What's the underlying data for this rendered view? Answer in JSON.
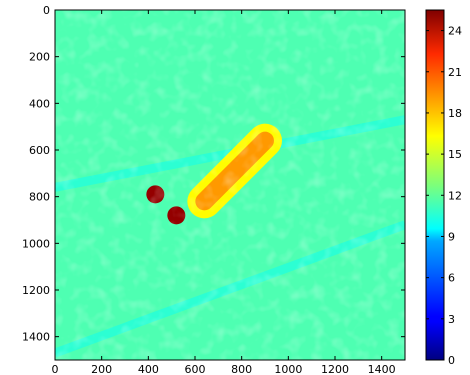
{
  "chart_data": {
    "type": "heatmap",
    "title": "",
    "xlabel": "",
    "ylabel": "",
    "xlim": [
      0,
      1500
    ],
    "ylim": [
      1500,
      0
    ],
    "y_axis_inverted": true,
    "grid": false,
    "x_ticks": [
      "0",
      "200",
      "400",
      "600",
      "800",
      "1000",
      "1200",
      "1400"
    ],
    "y_ticks": [
      "0",
      "200",
      "400",
      "600",
      "800",
      "1000",
      "1200",
      "1400"
    ],
    "colormap": "jet",
    "colorbar": {
      "range": [
        0,
        25.5
      ],
      "ticks": [
        "0",
        "3",
        "6",
        "9",
        "12",
        "15",
        "18",
        "21",
        "24"
      ],
      "placement": "right"
    },
    "background_level": 11.5,
    "features": [
      {
        "kind": "elongated-ridge",
        "from": [
          640,
          820
        ],
        "to": [
          900,
          560
        ],
        "peak_value": 18.5
      },
      {
        "kind": "hot-spot",
        "center": [
          430,
          790
        ],
        "value": 25
      },
      {
        "kind": "hot-spot",
        "center": [
          520,
          880
        ],
        "value": 25
      },
      {
        "kind": "cool-band",
        "from": [
          0,
          1470
        ],
        "to": [
          1500,
          920
        ],
        "value": 10
      },
      {
        "kind": "cool-band",
        "from": [
          0,
          760
        ],
        "to": [
          1500,
          470
        ],
        "value": 10
      }
    ]
  }
}
